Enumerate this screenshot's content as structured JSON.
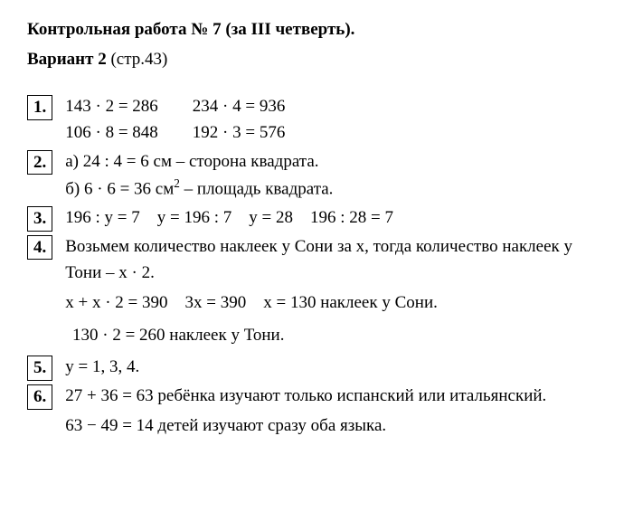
{
  "header": {
    "title": "Контрольная работа № 7 (за III четверть).",
    "variant_bold": "Вариант 2",
    "variant_rest": " (стр.43)"
  },
  "items": {
    "n1": {
      "num": "1.",
      "r1c1": "143 · 2 = 286",
      "r1c2": "234 · 4 = 936",
      "r2c1": "106 · 8 = 848",
      "r2c2": "192 · 3 = 576"
    },
    "n2": {
      "num": "2.",
      "a": "а) 24 : 4 = 6 см – сторона квадрата.",
      "b_pre": "б) 6 · 6 = 36 см",
      "b_sup": "2",
      "b_post": " – площадь квадрата."
    },
    "n3": {
      "num": "3.",
      "line": "196 : y = 7 y = 196 : 7 y = 28 196 : 28 = 7"
    },
    "n4": {
      "num": "4.",
      "p1": "Возьмем количество наклеек у Сони за x, тогда количество наклеек у Тони – x · 2.",
      "p2": "x + x · 2 = 390 3x = 390 x = 130 наклеек у Сони.",
      "p3": "130 · 2 = 260 наклеек у Тони."
    },
    "n5": {
      "num": "5.",
      "line": "y = 1, 3, 4."
    },
    "n6": {
      "num": "6.",
      "p1": "27 + 36 = 63 ребёнка изучают только испанский или итальянский.",
      "p2": "63 − 49 = 14 детей изучают сразу оба языка."
    }
  }
}
